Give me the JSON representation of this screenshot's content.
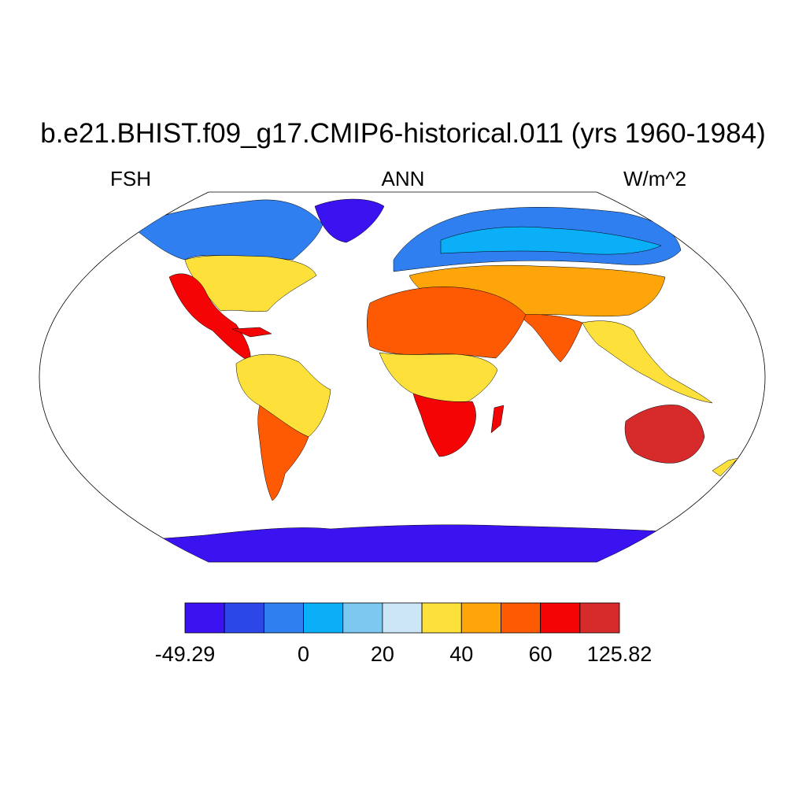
{
  "title": "b.e21.BHIST.f09_g17.CMIP6-historical.011 (yrs 1960-1984)",
  "left_label": "FSH",
  "center_label": "ANN",
  "right_label": "W/m^2",
  "colorbar": {
    "colors": [
      "#3b12f0",
      "#2c47e8",
      "#2f7ff0",
      "#0aaff8",
      "#7cc8f0",
      "#cce6f8",
      "#fde03a",
      "#fea50a",
      "#fe5a04",
      "#f40404",
      "#d72a2a"
    ],
    "labels": [
      {
        "text": "-49.29",
        "boundary": 0
      },
      {
        "text": "0",
        "boundary": 3
      },
      {
        "text": "20",
        "boundary": 5
      },
      {
        "text": "40",
        "boundary": 7
      },
      {
        "text": "60",
        "boundary": 9
      },
      {
        "text": "125.82",
        "boundary": 11
      }
    ]
  },
  "map": {
    "projection": "Robinson",
    "ocean_color": "#ffffff",
    "regions": [
      {
        "name": "greenland",
        "color": "#3b12f0"
      },
      {
        "name": "antarctica",
        "color": "#3b12f0"
      },
      {
        "name": "boreal-north-america",
        "color": "#2f7ff0"
      },
      {
        "name": "boreal-eurasia",
        "color": "#2f7ff0"
      },
      {
        "name": "tundra-siberia",
        "color": "#0aaff8"
      },
      {
        "name": "temperate-north-america",
        "color": "#fde03a"
      },
      {
        "name": "western-us-mexico",
        "color": "#f40404"
      },
      {
        "name": "amazon",
        "color": "#fde03a"
      },
      {
        "name": "eastern-south-america",
        "color": "#fe5a04"
      },
      {
        "name": "sahara-arabia",
        "color": "#fe5a04"
      },
      {
        "name": "central-africa",
        "color": "#fde03a"
      },
      {
        "name": "southern-africa",
        "color": "#f40404"
      },
      {
        "name": "central-asia",
        "color": "#fea50a"
      },
      {
        "name": "india",
        "color": "#fe5a04"
      },
      {
        "name": "southeast-asia",
        "color": "#fde03a"
      },
      {
        "name": "australia",
        "color": "#d72a2a"
      },
      {
        "name": "new-zealand",
        "color": "#fde03a"
      }
    ]
  }
}
